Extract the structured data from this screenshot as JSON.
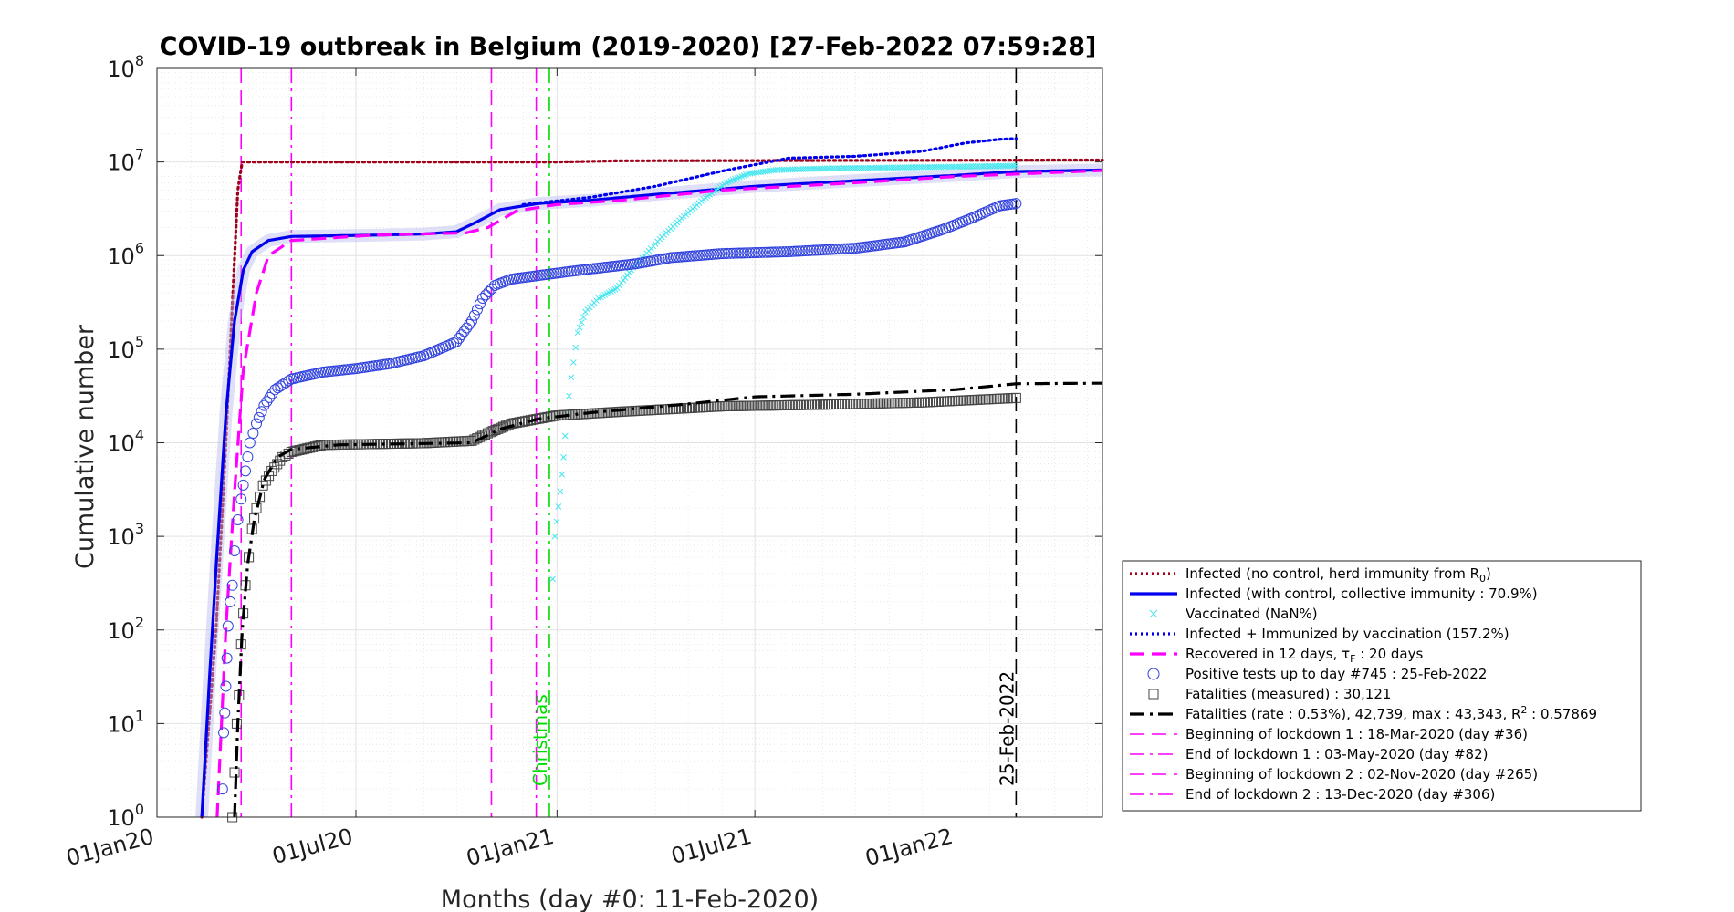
{
  "chart_data": {
    "type": "line",
    "title": "COVID-19 outbreak in Belgium (2019-2020) [27-Feb-2022 07:59:28]",
    "xlabel": "Months (day #0: 11-Feb-2020)",
    "ylabel": "Cumulative number",
    "yscale": "log",
    "ylim": [
      1,
      100000000
    ],
    "xlim": [
      "2020-01-01",
      "2022-05-15"
    ],
    "grid": true,
    "legend_position": "lower-right-outside",
    "x_ticks": [
      {
        "date": "2020-01-01",
        "label": "01Jan20"
      },
      {
        "date": "2020-07-01",
        "label": "01Jul20"
      },
      {
        "date": "2021-01-01",
        "label": "01Jan21"
      },
      {
        "date": "2021-07-01",
        "label": "01Jul21"
      },
      {
        "date": "2022-01-01",
        "label": "01Jan22"
      }
    ],
    "y_ticks": [
      {
        "value": 1,
        "base": "10",
        "exp": "0"
      },
      {
        "value": 10,
        "base": "10",
        "exp": "1"
      },
      {
        "value": 100,
        "base": "10",
        "exp": "2"
      },
      {
        "value": 1000,
        "base": "10",
        "exp": "3"
      },
      {
        "value": 10000,
        "base": "10",
        "exp": "4"
      },
      {
        "value": 100000,
        "base": "10",
        "exp": "5"
      },
      {
        "value": 1000000,
        "base": "10",
        "exp": "6"
      },
      {
        "value": 10000000,
        "base": "10",
        "exp": "7"
      },
      {
        "value": 100000000,
        "base": "10",
        "exp": "8"
      }
    ],
    "vlines": [
      {
        "date": "2020-03-18",
        "color": "#ff00ff",
        "style": "dashed"
      },
      {
        "date": "2020-05-03",
        "color": "#ff00ff",
        "style": "dashdot"
      },
      {
        "date": "2020-11-02",
        "color": "#ff00ff",
        "style": "dashed"
      },
      {
        "date": "2020-12-13",
        "color": "#ff00ff",
        "style": "dashdot"
      },
      {
        "date": "2020-12-25",
        "color": "#00dd00",
        "style": "dashdot",
        "label": "Christmas"
      },
      {
        "date": "2022-02-25",
        "color": "#000000",
        "style": "dashed",
        "label": "25-Feb-2022"
      }
    ],
    "series": [
      {
        "name": "Infected (no control, herd immunity from R0)",
        "color": "#a0001a",
        "style": "dotted",
        "points": [
          [
            "2020-02-11",
            1
          ],
          [
            "2020-02-24",
            100
          ],
          [
            "2020-03-04",
            10000
          ],
          [
            "2020-03-10",
            300000
          ],
          [
            "2020-03-15",
            5000000
          ],
          [
            "2020-03-19",
            10000000
          ],
          [
            "2020-12-31",
            10000000
          ],
          [
            "2021-03-01",
            10300000
          ],
          [
            "2022-05-15",
            10500000
          ]
        ]
      },
      {
        "name": "Infected (with control, collective immunity : 70.9%)",
        "color": "#0000ee",
        "style": "solid",
        "points": [
          [
            "2020-02-11",
            1
          ],
          [
            "2020-02-18",
            30
          ],
          [
            "2020-02-25",
            700
          ],
          [
            "2020-03-04",
            20000
          ],
          [
            "2020-03-12",
            200000
          ],
          [
            "2020-03-20",
            700000
          ],
          [
            "2020-03-28",
            1100000
          ],
          [
            "2020-04-12",
            1450000
          ],
          [
            "2020-05-03",
            1600000
          ],
          [
            "2020-07-15",
            1650000
          ],
          [
            "2020-09-01",
            1700000
          ],
          [
            "2020-10-01",
            1800000
          ],
          [
            "2020-10-20",
            2300000
          ],
          [
            "2020-11-10",
            3100000
          ],
          [
            "2020-12-15",
            3600000
          ],
          [
            "2021-02-01",
            3900000
          ],
          [
            "2021-04-01",
            4500000
          ],
          [
            "2021-07-01",
            5500000
          ],
          [
            "2021-10-01",
            6300000
          ],
          [
            "2022-01-01",
            7200000
          ],
          [
            "2022-02-25",
            7900000
          ],
          [
            "2022-05-15",
            8200000
          ]
        ]
      },
      {
        "name": "Vaccinated (NaN%)",
        "color": "#44e6ee",
        "style": "marker-x",
        "points": [
          [
            "2020-12-28",
            350
          ],
          [
            "2020-12-30",
            1000
          ],
          [
            "2021-01-04",
            3000
          ],
          [
            "2021-01-07",
            7000
          ],
          [
            "2021-01-10",
            20000
          ],
          [
            "2021-01-14",
            50000
          ],
          [
            "2021-01-20",
            150000
          ],
          [
            "2021-01-27",
            250000
          ],
          [
            "2021-02-08",
            350000
          ],
          [
            "2021-02-25",
            450000
          ],
          [
            "2021-03-10",
            700000
          ],
          [
            "2021-03-22",
            1000000
          ],
          [
            "2021-04-05",
            1500000
          ],
          [
            "2021-04-25",
            2500000
          ],
          [
            "2021-05-15",
            4000000
          ],
          [
            "2021-06-05",
            6000000
          ],
          [
            "2021-06-25",
            7500000
          ],
          [
            "2021-07-20",
            8200000
          ],
          [
            "2021-09-01",
            8500000
          ],
          [
            "2021-11-01",
            8700000
          ],
          [
            "2022-01-01",
            8900000
          ],
          [
            "2022-02-25",
            9100000
          ]
        ]
      },
      {
        "name": "Infected + Immunized by vaccination (157.2%)",
        "color": "#0000ee",
        "style": "dotted",
        "points": [
          [
            "2020-12-01",
            3500000
          ],
          [
            "2021-02-01",
            4200000
          ],
          [
            "2021-04-01",
            5500000
          ],
          [
            "2021-06-01",
            8000000
          ],
          [
            "2021-08-01",
            11000000
          ],
          [
            "2021-10-01",
            11500000
          ],
          [
            "2021-12-01",
            13000000
          ],
          [
            "2022-01-10",
            16000000
          ],
          [
            "2022-02-10",
            17500000
          ],
          [
            "2022-02-25",
            17800000
          ]
        ]
      },
      {
        "name": "Recovered in 12 days, τF : 20 days",
        "color": "#ff00ff",
        "style": "dashed",
        "points": [
          [
            "2020-02-25",
            1
          ],
          [
            "2020-03-04",
            100
          ],
          [
            "2020-03-12",
            3000
          ],
          [
            "2020-03-20",
            60000
          ],
          [
            "2020-04-01",
            400000
          ],
          [
            "2020-04-12",
            1000000
          ],
          [
            "2020-05-03",
            1450000
          ],
          [
            "2020-07-15",
            1650000
          ],
          [
            "2020-10-10",
            1750000
          ],
          [
            "2020-10-30",
            2000000
          ],
          [
            "2020-11-25",
            3000000
          ],
          [
            "2020-12-31",
            3500000
          ],
          [
            "2021-03-01",
            3900000
          ],
          [
            "2021-06-01",
            5000000
          ],
          [
            "2021-10-01",
            6000000
          ],
          [
            "2022-01-01",
            7000000
          ],
          [
            "2022-05-15",
            8100000
          ]
        ]
      },
      {
        "name": "Positive tests up to day #745 : 25-Feb-2022",
        "color": "#3344dd",
        "style": "marker-circle",
        "points": [
          [
            "2020-03-01",
            2
          ],
          [
            "2020-03-02",
            8
          ],
          [
            "2020-03-03",
            13
          ],
          [
            "2020-03-04",
            25
          ],
          [
            "2020-03-05",
            50
          ],
          [
            "2020-03-06",
            110
          ],
          [
            "2020-03-08",
            200
          ],
          [
            "2020-03-10",
            300
          ],
          [
            "2020-03-12",
            700
          ],
          [
            "2020-03-15",
            1500
          ],
          [
            "2020-03-18",
            2500
          ],
          [
            "2020-03-22",
            5000
          ],
          [
            "2020-03-26",
            10000
          ],
          [
            "2020-04-01",
            16000
          ],
          [
            "2020-04-08",
            25000
          ],
          [
            "2020-04-18",
            37000
          ],
          [
            "2020-05-03",
            48000
          ],
          [
            "2020-06-01",
            57000
          ],
          [
            "2020-07-01",
            62000
          ],
          [
            "2020-08-01",
            70000
          ],
          [
            "2020-09-01",
            85000
          ],
          [
            "2020-10-01",
            120000
          ],
          [
            "2020-10-15",
            200000
          ],
          [
            "2020-10-25",
            350000
          ],
          [
            "2020-11-05",
            480000
          ],
          [
            "2020-11-20",
            560000
          ],
          [
            "2021-01-01",
            650000
          ],
          [
            "2021-02-01",
            720000
          ],
          [
            "2021-03-15",
            820000
          ],
          [
            "2021-04-15",
            950000
          ],
          [
            "2021-06-01",
            1050000
          ],
          [
            "2021-08-01",
            1100000
          ],
          [
            "2021-10-01",
            1200000
          ],
          [
            "2021-11-15",
            1400000
          ],
          [
            "2021-12-20",
            1900000
          ],
          [
            "2022-01-15",
            2500000
          ],
          [
            "2022-02-10",
            3400000
          ],
          [
            "2022-02-25",
            3600000
          ]
        ]
      },
      {
        "name": "Fatalities (measured) : 30,121",
        "color": "#444444",
        "style": "marker-square",
        "points": [
          [
            "2020-03-10",
            1
          ],
          [
            "2020-03-12",
            3
          ],
          [
            "2020-03-14",
            10
          ],
          [
            "2020-03-16",
            20
          ],
          [
            "2020-03-18",
            70
          ],
          [
            "2020-03-20",
            150
          ],
          [
            "2020-03-22",
            300
          ],
          [
            "2020-03-25",
            600
          ],
          [
            "2020-03-28",
            1200
          ],
          [
            "2020-04-01",
            2000
          ],
          [
            "2020-04-07",
            3500
          ],
          [
            "2020-04-15",
            5000
          ],
          [
            "2020-04-25",
            7000
          ],
          [
            "2020-05-03",
            8000
          ],
          [
            "2020-06-01",
            9500
          ],
          [
            "2020-09-01",
            9900
          ],
          [
            "2020-10-15",
            10500
          ],
          [
            "2020-11-01",
            13000
          ],
          [
            "2020-11-20",
            16000
          ],
          [
            "2020-12-31",
            19500
          ],
          [
            "2021-03-01",
            21500
          ],
          [
            "2021-06-01",
            24500
          ],
          [
            "2021-09-01",
            25500
          ],
          [
            "2021-12-01",
            27000
          ],
          [
            "2022-02-25",
            30121
          ]
        ]
      },
      {
        "name": "Fatalities (rate : 0.53%), 42,739, max : 43,343, R2 : 0.57869",
        "color": "#000000",
        "style": "dashdot",
        "points": [
          [
            "2020-03-12",
            1
          ],
          [
            "2020-03-15",
            10
          ],
          [
            "2020-03-19",
            100
          ],
          [
            "2020-03-24",
            500
          ],
          [
            "2020-03-30",
            1500
          ],
          [
            "2020-04-08",
            4000
          ],
          [
            "2020-04-20",
            7000
          ],
          [
            "2020-05-03",
            8500
          ],
          [
            "2020-06-15",
            9500
          ],
          [
            "2020-10-15",
            10000
          ],
          [
            "2020-11-10",
            14000
          ],
          [
            "2020-12-15",
            18000
          ],
          [
            "2021-02-01",
            21000
          ],
          [
            "2021-05-01",
            26000
          ],
          [
            "2021-07-01",
            31000
          ],
          [
            "2021-10-01",
            33000
          ],
          [
            "2022-01-01",
            37000
          ],
          [
            "2022-02-25",
            42739
          ],
          [
            "2022-05-15",
            43343
          ]
        ]
      }
    ],
    "markers_note": "",
    "legend": [
      {
        "style": "dotted",
        "color": "#a0001a",
        "label": "Infected (no control, herd immunity from R",
        "sub": "0",
        "tail": ")"
      },
      {
        "style": "solid",
        "color": "#0000ee",
        "label": "Infected (with control, collective immunity : 70.9%)"
      },
      {
        "style": "marker-x",
        "color": "#44e6ee",
        "label": "Vaccinated (NaN%)"
      },
      {
        "style": "dotted",
        "color": "#0000ee",
        "label": "Infected + Immunized by vaccination (157.2%)"
      },
      {
        "style": "dashed",
        "color": "#ff00ff",
        "label": "Recovered in 12 days, τ",
        "sub": "F",
        "tail": " : 20 days"
      },
      {
        "style": "marker-circle",
        "color": "#3344dd",
        "label": "Positive tests up to day #745 : 25-Feb-2022"
      },
      {
        "style": "marker-square",
        "color": "#444444",
        "label": "Fatalities (measured) : 30,121"
      },
      {
        "style": "dashdot",
        "color": "#000000",
        "label": "Fatalities (rate : 0.53%), 42,739, max : 43,343, R",
        "sup": "2",
        "tail": " : 0.57869"
      },
      {
        "style": "dashed",
        "color": "#ff00ff",
        "label": "Beginning of lockdown 1 : 18-Mar-2020 (day #36)"
      },
      {
        "style": "dashdot",
        "color": "#ff00ff",
        "label": "End of lockdown 1 : 03-May-2020 (day #82)"
      },
      {
        "style": "dashed",
        "color": "#ff00ff",
        "label": "Beginning of lockdown 2 : 02-Nov-2020 (day #265)"
      },
      {
        "style": "dashdot",
        "color": "#ff00ff",
        "label": "End of lockdown 2 : 13-Dec-2020 (day #306)"
      }
    ]
  }
}
